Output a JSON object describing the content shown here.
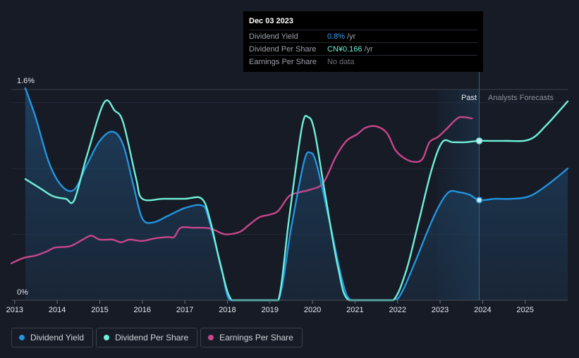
{
  "chart_data": {
    "type": "line",
    "title": "",
    "xlabel": "",
    "ylabel": "",
    "ylim": [
      0,
      1.6
    ],
    "y_tick_labels": [
      "1.6%",
      "0%"
    ],
    "x_tick_labels": [
      "2013",
      "2014",
      "2015",
      "2016",
      "2017",
      "2018",
      "2019",
      "2020",
      "2021",
      "2022",
      "2023",
      "2024",
      "2025"
    ],
    "x_range": [
      2012.92,
      2026.0
    ],
    "regions": {
      "past_label": "Past",
      "forecast_label": "Analysts Forecasts"
    },
    "series": [
      {
        "name": "Dividend Yield",
        "color": "#2394df",
        "points": [
          [
            2013.25,
            1.61
          ],
          [
            2013.5,
            1.38
          ],
          [
            2013.8,
            1.05
          ],
          [
            2014.1,
            0.87
          ],
          [
            2014.4,
            0.84
          ],
          [
            2014.7,
            1.03
          ],
          [
            2015.0,
            1.21
          ],
          [
            2015.3,
            1.28
          ],
          [
            2015.55,
            1.18
          ],
          [
            2015.8,
            0.86
          ],
          [
            2016.0,
            0.62
          ],
          [
            2016.25,
            0.59
          ],
          [
            2016.6,
            0.64
          ],
          [
            2017.0,
            0.7
          ],
          [
            2017.4,
            0.72
          ],
          [
            2017.55,
            0.63
          ],
          [
            2017.85,
            0.26
          ],
          [
            2018.05,
            0.0
          ],
          [
            2018.4,
            0.0
          ],
          [
            2018.8,
            0.0
          ],
          [
            2019.2,
            0.0
          ],
          [
            2019.5,
            0.55
          ],
          [
            2019.8,
            1.05
          ],
          [
            2019.95,
            1.12
          ],
          [
            2020.1,
            1.03
          ],
          [
            2020.4,
            0.6
          ],
          [
            2020.7,
            0.15
          ],
          [
            2020.9,
            0.0
          ],
          [
            2021.3,
            0.0
          ],
          [
            2021.9,
            0.0
          ],
          [
            2022.1,
            0.06
          ],
          [
            2022.4,
            0.28
          ],
          [
            2022.7,
            0.52
          ],
          [
            2022.95,
            0.7
          ],
          [
            2023.2,
            0.82
          ],
          [
            2023.45,
            0.82
          ],
          [
            2023.7,
            0.8
          ],
          [
            2023.92,
            0.76
          ],
          [
            2024.3,
            0.77
          ],
          [
            2024.7,
            0.77
          ],
          [
            2025.1,
            0.79
          ],
          [
            2025.5,
            0.87
          ],
          [
            2026.0,
            1.0
          ]
        ]
      },
      {
        "name": "Dividend Per Share",
        "color": "#6ff0d8",
        "points": [
          [
            2013.25,
            0.92
          ],
          [
            2013.6,
            0.85
          ],
          [
            2013.9,
            0.79
          ],
          [
            2014.2,
            0.77
          ],
          [
            2014.4,
            0.76
          ],
          [
            2014.7,
            1.1
          ],
          [
            2015.1,
            1.5
          ],
          [
            2015.35,
            1.44
          ],
          [
            2015.55,
            1.35
          ],
          [
            2015.85,
            0.93
          ],
          [
            2016.0,
            0.77
          ],
          [
            2016.5,
            0.77
          ],
          [
            2017.0,
            0.77
          ],
          [
            2017.4,
            0.77
          ],
          [
            2017.6,
            0.6
          ],
          [
            2017.85,
            0.25
          ],
          [
            2018.1,
            0.0
          ],
          [
            2018.5,
            0.0
          ],
          [
            2018.9,
            0.0
          ],
          [
            2019.2,
            0.0
          ],
          [
            2019.45,
            0.62
          ],
          [
            2019.75,
            1.31
          ],
          [
            2019.9,
            1.39
          ],
          [
            2020.05,
            1.28
          ],
          [
            2020.3,
            0.8
          ],
          [
            2020.6,
            0.25
          ],
          [
            2020.85,
            0.0
          ],
          [
            2021.5,
            0.0
          ],
          [
            2021.9,
            0.0
          ],
          [
            2022.2,
            0.22
          ],
          [
            2022.5,
            0.6
          ],
          [
            2022.8,
            0.99
          ],
          [
            2023.05,
            1.2
          ],
          [
            2023.3,
            1.2
          ],
          [
            2023.6,
            1.2
          ],
          [
            2023.92,
            1.21
          ],
          [
            2024.5,
            1.21
          ],
          [
            2025.1,
            1.22
          ],
          [
            2025.5,
            1.33
          ],
          [
            2026.0,
            1.51
          ]
        ]
      },
      {
        "name": "Earnings Per Share",
        "color": "#c8468a",
        "points": [
          [
            2012.92,
            0.28
          ],
          [
            2013.2,
            0.32
          ],
          [
            2013.5,
            0.34
          ],
          [
            2013.75,
            0.37
          ],
          [
            2013.95,
            0.4
          ],
          [
            2014.3,
            0.41
          ],
          [
            2014.6,
            0.46
          ],
          [
            2014.8,
            0.49
          ],
          [
            2015.0,
            0.46
          ],
          [
            2015.3,
            0.46
          ],
          [
            2015.5,
            0.44
          ],
          [
            2015.7,
            0.46
          ],
          [
            2016.0,
            0.45
          ],
          [
            2016.3,
            0.47
          ],
          [
            2016.6,
            0.48
          ],
          [
            2016.75,
            0.48
          ],
          [
            2016.9,
            0.55
          ],
          [
            2017.2,
            0.55
          ],
          [
            2017.45,
            0.55
          ],
          [
            2017.65,
            0.54
          ],
          [
            2017.85,
            0.51
          ],
          [
            2018.0,
            0.5
          ],
          [
            2018.3,
            0.52
          ],
          [
            2018.5,
            0.57
          ],
          [
            2018.75,
            0.63
          ],
          [
            2019.0,
            0.65
          ],
          [
            2019.2,
            0.68
          ],
          [
            2019.45,
            0.79
          ],
          [
            2019.7,
            0.82
          ],
          [
            2019.95,
            0.84
          ],
          [
            2020.25,
            0.89
          ],
          [
            2020.55,
            1.09
          ],
          [
            2020.8,
            1.21
          ],
          [
            2021.05,
            1.26
          ],
          [
            2021.25,
            1.31
          ],
          [
            2021.5,
            1.32
          ],
          [
            2021.75,
            1.27
          ],
          [
            2021.95,
            1.14
          ],
          [
            2022.2,
            1.07
          ],
          [
            2022.45,
            1.05
          ],
          [
            2022.6,
            1.08
          ],
          [
            2022.75,
            1.2
          ],
          [
            2022.95,
            1.24
          ],
          [
            2023.15,
            1.3
          ],
          [
            2023.4,
            1.38
          ],
          [
            2023.55,
            1.39
          ],
          [
            2023.75,
            1.38
          ]
        ]
      }
    ],
    "markers": [
      {
        "series": "Dividend Yield",
        "x": 2023.92,
        "y": 0.76
      },
      {
        "series": "Dividend Per Share",
        "x": 2023.92,
        "y": 1.21
      }
    ]
  },
  "tooltip": {
    "date": "Dec 03 2023",
    "rows": [
      {
        "label": "Dividend Yield",
        "value": "0.8%",
        "unit": "/yr"
      },
      {
        "label": "Dividend Per Share",
        "value": "CN¥0.166",
        "unit": "/yr"
      },
      {
        "label": "Earnings Per Share",
        "value": "No data",
        "unit": ""
      }
    ]
  },
  "legend": [
    {
      "label": "Dividend Yield",
      "color": "#2394df"
    },
    {
      "label": "Dividend Per Share",
      "color": "#6ff0d8"
    },
    {
      "label": "Earnings Per Share",
      "color": "#c8468a"
    }
  ]
}
